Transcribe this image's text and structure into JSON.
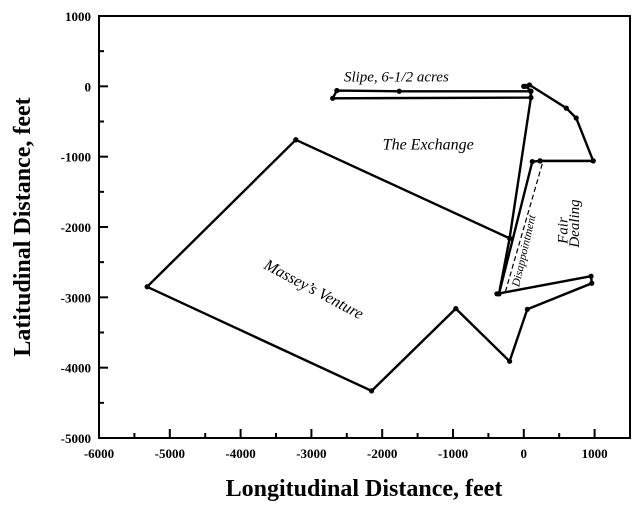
{
  "chart_data": {
    "type": "line",
    "title": "",
    "xlabel": "Longitudinal Distance, feet",
    "ylabel": "Latitudinal Distance, feet",
    "xlim": [
      -6000,
      1500
    ],
    "ylim": [
      -5000,
      1000
    ],
    "x_ticks": [
      -6000,
      -5000,
      -4000,
      -3000,
      -2000,
      -1000,
      0,
      1000
    ],
    "y_ticks": [
      1000,
      0,
      -1000,
      -2000,
      -3000,
      -4000,
      -5000
    ],
    "grid": false,
    "series": [
      {
        "name": "Massey's Venture",
        "points": [
          [
            -3220,
            -760
          ],
          [
            -200,
            -2160
          ],
          [
            -350,
            -2950
          ],
          [
            -380,
            -2950
          ],
          [
            950,
            -2700
          ],
          [
            960,
            -2800
          ],
          [
            50,
            -3170
          ],
          [
            -200,
            -3910
          ],
          [
            -960,
            -3160
          ],
          [
            -2150,
            -4330
          ],
          [
            -5320,
            -2850
          ],
          [
            -3220,
            -760
          ]
        ]
      },
      {
        "name": "Slipe, 6-1/2 acres",
        "points": [
          [
            -2640,
            -60
          ],
          [
            -1760,
            -70
          ],
          [
            100,
            -70
          ],
          [
            100,
            -160
          ],
          [
            -2700,
            -170
          ],
          [
            -2640,
            -60
          ]
        ]
      },
      {
        "name": "The Exchange",
        "points": [
          [
            -200,
            -2160
          ],
          [
            100,
            -160
          ],
          [
            100,
            -70
          ],
          [
            30,
            0
          ],
          [
            0,
            0
          ],
          [
            0,
            0
          ],
          [
            80,
            20
          ],
          [
            600,
            -310
          ],
          [
            740,
            -450
          ],
          [
            980,
            -1060
          ],
          [
            230,
            -1060
          ],
          [
            120,
            -1070
          ],
          [
            -350,
            -2950
          ]
        ]
      },
      {
        "name": "Fair Dealing",
        "points": [
          [
            230,
            -1060
          ],
          [
            980,
            -1060
          ]
        ]
      }
    ],
    "divider": {
      "name": "Disappointment",
      "points": [
        [
          -260,
          -2920
        ],
        [
          270,
          -1070
        ]
      ]
    },
    "region_labels": [
      {
        "text": "Slipe, 6-1/2 acres",
        "x": -1800,
        "y": 70,
        "rotation": 0
      },
      {
        "text": "The Exchange",
        "x": -1350,
        "y": -900,
        "rotation": 0
      },
      {
        "text": "Massey’s Venture",
        "x": -3000,
        "y": -2950,
        "rotation": 28
      },
      {
        "text": "Disappointment",
        "x": 50,
        "y": -2350,
        "rotation": -77
      },
      {
        "text": "Fair",
        "x": 620,
        "y": -2050,
        "rotation": -90
      },
      {
        "text": "Dealing",
        "x": 780,
        "y": -1950,
        "rotation": -90
      }
    ]
  }
}
